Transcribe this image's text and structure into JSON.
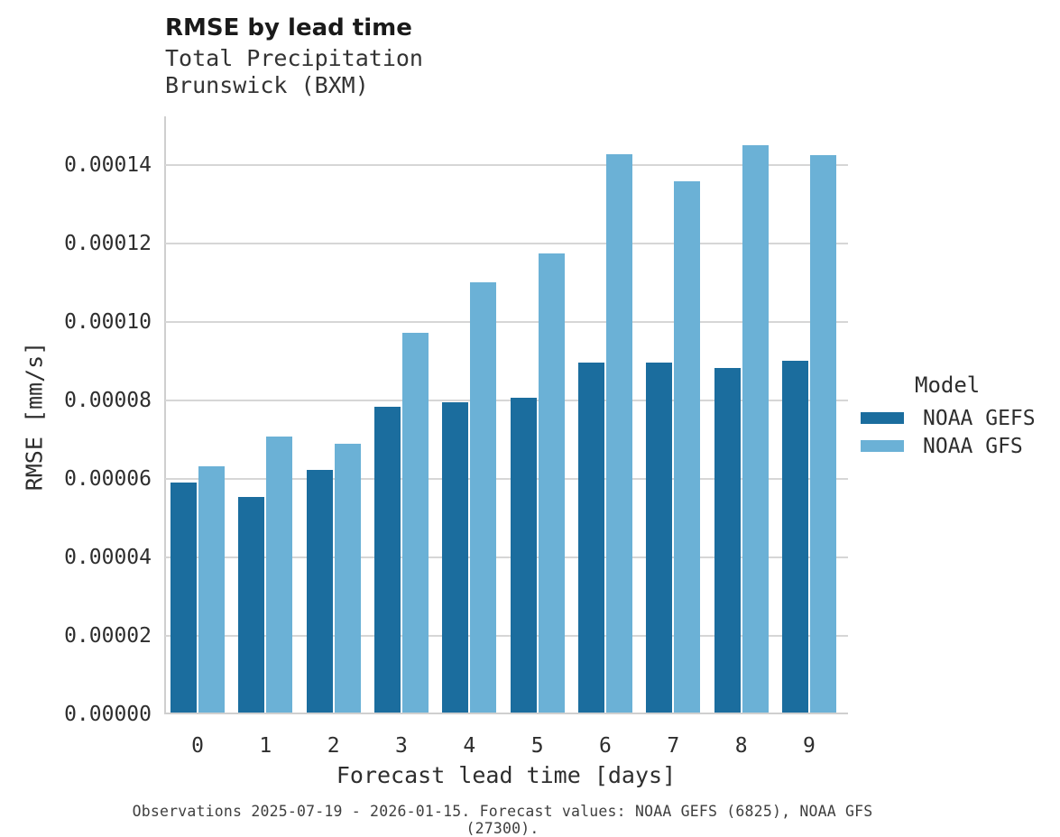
{
  "title": "RMSE by lead time",
  "subtitle_line1": "Total Precipitation",
  "subtitle_line2": "Brunswick (BXM)",
  "footer": "Observations 2025-07-19 - 2026-01-15. Forecast values: NOAA GEFS (6825), NOAA GFS (27300).",
  "colors": {
    "gefs_dark_blue": "#1b6d9e",
    "gfs_light_blue": "#6bb1d6",
    "grid_gray": "#d6d6d6",
    "text_dark": "#262626"
  },
  "legend": {
    "title": "Model",
    "entries": [
      {
        "label": "NOAA GEFS",
        "color": "#1b6d9e"
      },
      {
        "label": "NOAA GFS",
        "color": "#6bb1d6"
      }
    ]
  },
  "chart_data": {
    "type": "bar",
    "title": "RMSE by lead time",
    "subtitle": [
      "Total Precipitation",
      "Brunswick (BXM)"
    ],
    "xlabel": "Forecast lead time [days]",
    "ylabel": "RMSE [mm/s]",
    "categories": [
      "0",
      "1",
      "2",
      "3",
      "4",
      "5",
      "6",
      "7",
      "8",
      "9"
    ],
    "series": [
      {
        "name": "NOAA GEFS",
        "color": "#1b6d9e",
        "values": [
          5.87e-05,
          5.5e-05,
          6.19e-05,
          7.8e-05,
          7.9e-05,
          8.03e-05,
          8.91e-05,
          8.92e-05,
          8.79e-05,
          8.97e-05
        ]
      },
      {
        "name": "NOAA GFS",
        "color": "#6bb1d6",
        "values": [
          6.28e-05,
          7.04e-05,
          6.84e-05,
          9.68e-05,
          0.0001097,
          0.000117,
          0.0001422,
          0.0001353,
          0.0001445,
          0.0001421
        ]
      }
    ],
    "ylim": [
      0,
      0.00015
    ],
    "yticks": [
      0,
      2e-05,
      4e-05,
      6e-05,
      8e-05,
      0.0001,
      0.00012,
      0.00014
    ],
    "ytick_labels": [
      "0.00000",
      "0.00002",
      "0.00004",
      "0.00006",
      "0.00008",
      "0.00010",
      "0.00012",
      "0.00014"
    ],
    "grid": true,
    "legend_title": "Model",
    "legend_position": "right-outside"
  }
}
